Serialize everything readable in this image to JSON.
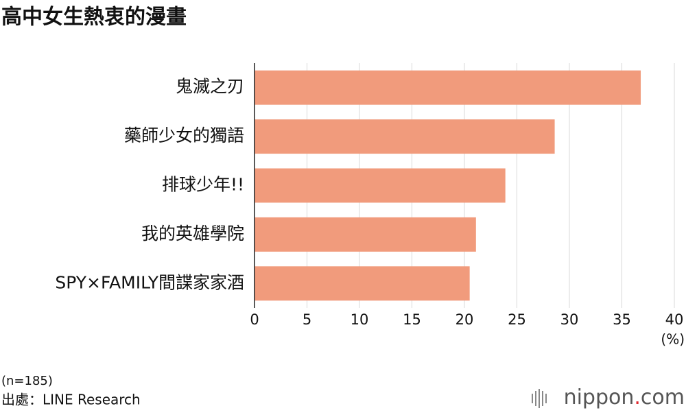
{
  "chart_data": {
    "type": "bar",
    "orientation": "horizontal",
    "title": "高中女生熱衷的漫畫",
    "categories": [
      "鬼滅之刃",
      "藥師少女的獨語",
      "排球少年!!",
      "我的英雄學院",
      "SPY×FAMILY間諜家家酒"
    ],
    "values": [
      36.8,
      28.6,
      23.9,
      21.1,
      20.5
    ],
    "color": "#f19b7c",
    "xlim": [
      0,
      40
    ],
    "xticks": [
      0,
      5,
      10,
      15,
      20,
      25,
      30,
      35,
      40
    ],
    "grid": true,
    "unit_label": "(%)",
    "note": "(n=185)",
    "source": "出處：LINE Research",
    "logo": {
      "name": "nippon",
      "dot": ".",
      "domain": "com"
    }
  }
}
